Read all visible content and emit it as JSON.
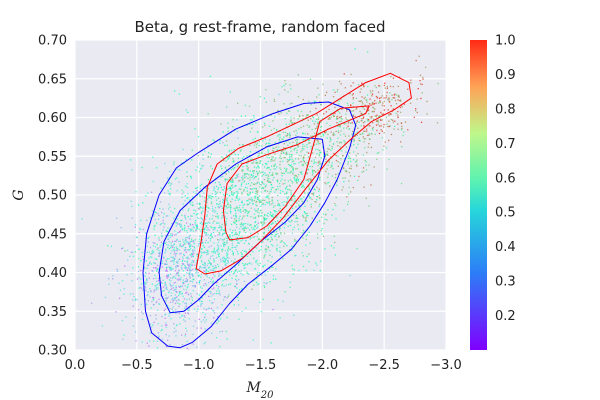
{
  "chart_data": {
    "type": "scatter",
    "title": "Beta, g rest-frame, random faced",
    "xlabel": "M20",
    "ylabel": "G",
    "xlim": [
      0.0,
      -3.0
    ],
    "ylim": [
      0.3,
      0.7
    ],
    "x_inverted": true,
    "grid": true,
    "x_ticks": [
      0.0,
      -0.5,
      -1.0,
      -1.5,
      -2.0,
      -2.5,
      -3.0
    ],
    "x_tick_labels": [
      "0.0",
      "−0.5",
      "−1.0",
      "−1.5",
      "−2.0",
      "−2.5",
      "−3.0"
    ],
    "y_ticks": [
      0.3,
      0.35,
      0.4,
      0.45,
      0.5,
      0.55,
      0.6,
      0.65,
      0.7
    ],
    "y_tick_labels": [
      "0.30",
      "0.35",
      "0.40",
      "0.45",
      "0.50",
      "0.55",
      "0.60",
      "0.65",
      "0.70"
    ],
    "colorbar": {
      "colormap": "rainbow",
      "range": [
        0.1,
        1.0
      ],
      "ticks": [
        0.2,
        0.3,
        0.4,
        0.5,
        0.6,
        0.7,
        0.8,
        0.9,
        1.0
      ],
      "tick_labels": [
        "0.2",
        "0.3",
        "0.4",
        "0.5",
        "0.6",
        "0.7",
        "0.8",
        "0.9",
        "1.0"
      ]
    },
    "point_clusters": [
      {
        "center": [
          -0.85,
          0.4
        ],
        "spread": [
          0.22,
          0.045
        ],
        "value_range": [
          0.2,
          0.5
        ],
        "count": 900
      },
      {
        "center": [
          -1.2,
          0.46
        ],
        "spread": [
          0.3,
          0.055
        ],
        "value_range": [
          0.35,
          0.65
        ],
        "count": 1100
      },
      {
        "center": [
          -1.6,
          0.51
        ],
        "spread": [
          0.28,
          0.05
        ],
        "value_range": [
          0.5,
          0.8
        ],
        "count": 900
      },
      {
        "center": [
          -2.05,
          0.57
        ],
        "spread": [
          0.25,
          0.035
        ],
        "value_range": [
          0.6,
          0.9
        ],
        "count": 500
      },
      {
        "center": [
          -2.45,
          0.615
        ],
        "spread": [
          0.2,
          0.02
        ],
        "value_range": [
          0.75,
          1.0
        ],
        "count": 250
      }
    ],
    "contour_series": [
      {
        "color": "#0000ff",
        "points": [
          [
            -0.75,
            0.305
          ],
          [
            -0.62,
            0.322
          ],
          [
            -0.57,
            0.35
          ],
          [
            -0.55,
            0.4
          ],
          [
            -0.58,
            0.45
          ],
          [
            -0.68,
            0.5
          ],
          [
            -0.82,
            0.535
          ],
          [
            -1.0,
            0.555
          ],
          [
            -1.3,
            0.585
          ],
          [
            -1.6,
            0.605
          ],
          [
            -1.85,
            0.618
          ],
          [
            -2.05,
            0.62
          ],
          [
            -2.22,
            0.61
          ],
          [
            -2.27,
            0.59
          ],
          [
            -2.22,
            0.56
          ],
          [
            -2.12,
            0.52
          ],
          [
            -2.02,
            0.49
          ],
          [
            -1.9,
            0.46
          ],
          [
            -1.75,
            0.43
          ],
          [
            -1.6,
            0.41
          ],
          [
            -1.4,
            0.385
          ],
          [
            -1.25,
            0.36
          ],
          [
            -1.1,
            0.33
          ],
          [
            -0.95,
            0.31
          ],
          [
            -0.85,
            0.303
          ],
          [
            -0.75,
            0.305
          ]
        ]
      },
      {
        "color": "#0000ff",
        "points": [
          [
            -0.77,
            0.348
          ],
          [
            -0.7,
            0.37
          ],
          [
            -0.68,
            0.4
          ],
          [
            -0.72,
            0.44
          ],
          [
            -0.85,
            0.48
          ],
          [
            -1.05,
            0.51
          ],
          [
            -1.3,
            0.54
          ],
          [
            -1.55,
            0.562
          ],
          [
            -1.8,
            0.575
          ],
          [
            -2.0,
            0.572
          ],
          [
            -2.02,
            0.55
          ],
          [
            -1.96,
            0.52
          ],
          [
            -1.85,
            0.49
          ],
          [
            -1.7,
            0.465
          ],
          [
            -1.5,
            0.44
          ],
          [
            -1.3,
            0.41
          ],
          [
            -1.12,
            0.385
          ],
          [
            -1.0,
            0.365
          ],
          [
            -0.88,
            0.35
          ],
          [
            -0.77,
            0.348
          ]
        ]
      },
      {
        "color": "#ff0000",
        "points": [
          [
            -0.98,
            0.405
          ],
          [
            -1.02,
            0.44
          ],
          [
            -1.05,
            0.475
          ],
          [
            -1.07,
            0.51
          ],
          [
            -1.15,
            0.54
          ],
          [
            -1.32,
            0.56
          ],
          [
            -1.55,
            0.575
          ],
          [
            -1.75,
            0.59
          ],
          [
            -1.95,
            0.605
          ],
          [
            -2.15,
            0.625
          ],
          [
            -2.35,
            0.645
          ],
          [
            -2.55,
            0.657
          ],
          [
            -2.7,
            0.645
          ],
          [
            -2.72,
            0.625
          ],
          [
            -2.58,
            0.61
          ],
          [
            -2.4,
            0.595
          ],
          [
            -2.25,
            0.575
          ],
          [
            -2.05,
            0.545
          ],
          [
            -1.85,
            0.505
          ],
          [
            -1.68,
            0.47
          ],
          [
            -1.5,
            0.44
          ],
          [
            -1.35,
            0.418
          ],
          [
            -1.18,
            0.402
          ],
          [
            -1.05,
            0.398
          ],
          [
            -0.98,
            0.405
          ]
        ]
      },
      {
        "color": "#ff0000",
        "points": [
          [
            -1.22,
            0.452
          ],
          [
            -1.2,
            0.48
          ],
          [
            -1.23,
            0.515
          ],
          [
            -1.35,
            0.54
          ],
          [
            -1.55,
            0.552
          ],
          [
            -1.8,
            0.565
          ],
          [
            -2.05,
            0.585
          ],
          [
            -2.35,
            0.605
          ],
          [
            -2.38,
            0.615
          ],
          [
            -2.15,
            0.612
          ],
          [
            -1.98,
            0.595
          ],
          [
            -1.92,
            0.56
          ],
          [
            -1.85,
            0.52
          ],
          [
            -1.7,
            0.485
          ],
          [
            -1.55,
            0.46
          ],
          [
            -1.4,
            0.445
          ],
          [
            -1.25,
            0.442
          ],
          [
            -1.22,
            0.452
          ]
        ]
      }
    ]
  }
}
